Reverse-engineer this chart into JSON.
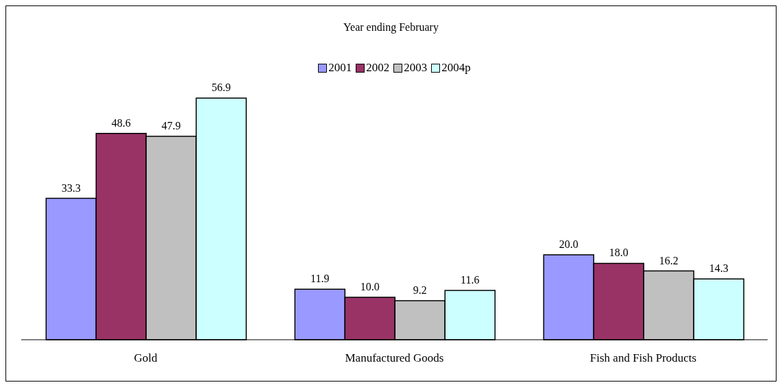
{
  "chart_data": {
    "type": "bar",
    "title": "Year ending February",
    "categories": [
      "Gold",
      "Manufactured Goods",
      "Fish and Fish Products"
    ],
    "series": [
      {
        "name": "2001",
        "color": "#9999ff",
        "values": [
          33.3,
          11.9,
          20.0
        ],
        "value_labels": [
          "33.3",
          "11.9",
          "20.0"
        ]
      },
      {
        "name": "2002",
        "color": "#993366",
        "values": [
          48.6,
          10.0,
          18.0
        ],
        "value_labels": [
          "48.6",
          "10.0",
          "18.0"
        ]
      },
      {
        "name": "2003",
        "color": "#c0c0c0",
        "values": [
          47.9,
          9.2,
          16.2
        ],
        "value_labels": [
          "47.9",
          "9.2",
          "16.2"
        ]
      },
      {
        "name": "2004p",
        "color": "#ccffff",
        "values": [
          56.9,
          11.6,
          14.3
        ],
        "value_labels": [
          "56.9",
          "11.6",
          "14.3"
        ]
      }
    ],
    "legend": "top"
  }
}
